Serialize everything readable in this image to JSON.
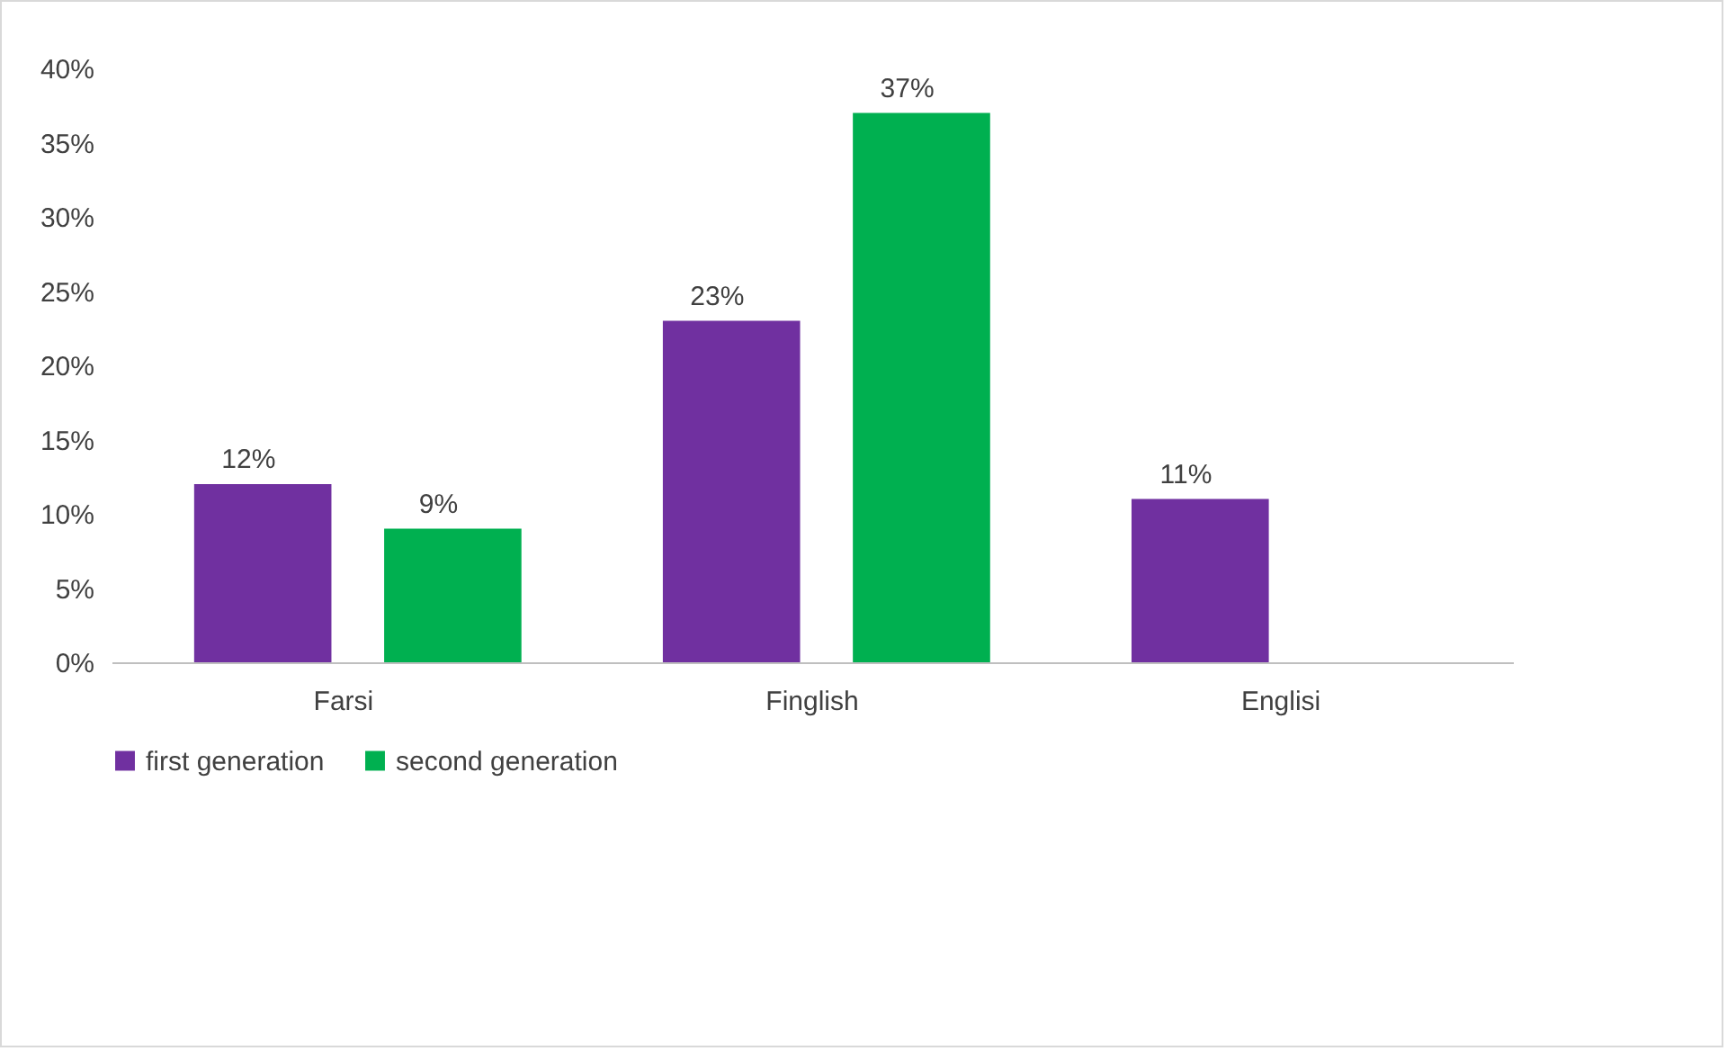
{
  "chart_data": {
    "type": "bar",
    "categories": [
      "Farsi",
      "Finglish",
      "Englisi"
    ],
    "series": [
      {
        "name": "first generation",
        "color": "#7030a0",
        "values": [
          12,
          23,
          11
        ],
        "value_labels": [
          "12%",
          "23%",
          "11%"
        ]
      },
      {
        "name": "second generation",
        "color": "#00b050",
        "values": [
          9,
          37,
          null
        ],
        "value_labels": [
          "9%",
          "37%",
          null
        ]
      }
    ],
    "ylim": [
      0,
      40
    ],
    "yticks": [
      {
        "value": 0,
        "label": "0%"
      },
      {
        "value": 5,
        "label": "5%"
      },
      {
        "value": 10,
        "label": "10%"
      },
      {
        "value": 15,
        "label": "15%"
      },
      {
        "value": 20,
        "label": "20%"
      },
      {
        "value": 25,
        "label": "25%"
      },
      {
        "value": 30,
        "label": "30%"
      },
      {
        "value": 35,
        "label": "35%"
      },
      {
        "value": 40,
        "label": "40%"
      }
    ],
    "legend": "bottom"
  }
}
